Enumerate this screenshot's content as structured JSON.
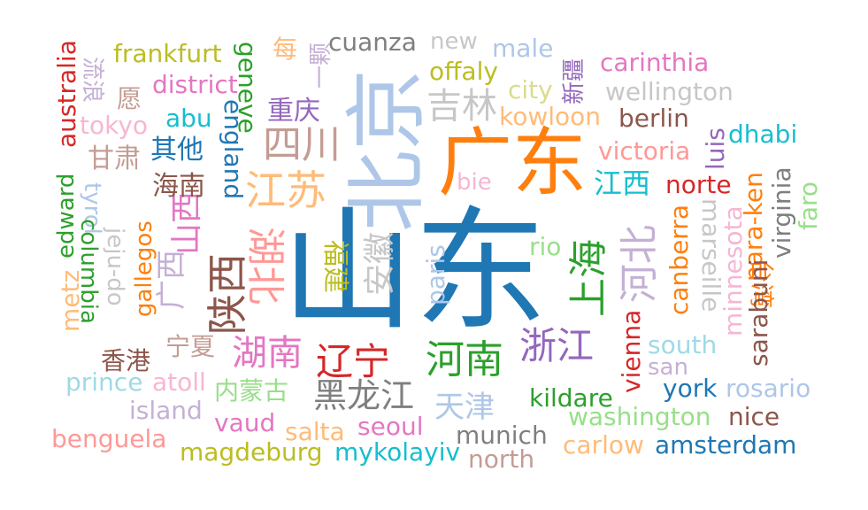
{
  "words": [
    {
      "text": "山东",
      "color": "#1f77b4"
    },
    {
      "text": "北京",
      "color": "#aec7e8"
    },
    {
      "text": "广东",
      "color": "#ff7f0e"
    },
    {
      "text": "四川",
      "color": "#c49c94"
    },
    {
      "text": "江苏",
      "color": "#ffbb78"
    },
    {
      "text": "吉林",
      "color": "#c7c7c7"
    },
    {
      "text": "上海",
      "color": "#2ca02c"
    },
    {
      "text": "河北",
      "color": "#c5b0d5"
    },
    {
      "text": "陕西",
      "color": "#8c564b"
    },
    {
      "text": "湖北",
      "color": "#ff9896"
    },
    {
      "text": "山西",
      "color": "#e377c2"
    },
    {
      "text": "广西",
      "color": "#c5b0d5"
    },
    {
      "text": "安徽",
      "color": "#c7c7c7"
    },
    {
      "text": "福建",
      "color": "#bcbd22"
    },
    {
      "text": "河南",
      "color": "#2ca02c"
    },
    {
      "text": "浙江",
      "color": "#9467bd"
    },
    {
      "text": "辽宁",
      "color": "#d62728"
    },
    {
      "text": "湖南",
      "color": "#e377c2"
    },
    {
      "text": "黑龙江",
      "color": "#7f7f7f"
    },
    {
      "text": "天津",
      "color": "#aec7e8"
    },
    {
      "text": "江西",
      "color": "#17becf"
    },
    {
      "text": "内蒙古",
      "color": "#98df8a"
    },
    {
      "text": "重庆",
      "color": "#9467bd"
    },
    {
      "text": "其他",
      "color": "#1f77b4"
    },
    {
      "text": "海南",
      "color": "#8c564b"
    },
    {
      "text": "甘肃",
      "color": "#c49c94"
    },
    {
      "text": "宁夏",
      "color": "#c49c94"
    },
    {
      "text": "香港",
      "color": "#8c564b"
    },
    {
      "text": "台湾",
      "color": "#ff7f0e"
    },
    {
      "text": "新疆",
      "color": "#9467bd"
    },
    {
      "text": "每",
      "color": "#ffbb78"
    },
    {
      "text": "一颗",
      "color": "#c5b0d5"
    },
    {
      "text": "愿",
      "color": "#c49c94"
    },
    {
      "text": "流浪",
      "color": "#c5b0d5"
    },
    {
      "text": "cuanza",
      "color": "#7f7f7f"
    },
    {
      "text": "new",
      "color": "#c7c7c7"
    },
    {
      "text": "male",
      "color": "#aec7e8"
    },
    {
      "text": "frankfurt",
      "color": "#bcbd22"
    },
    {
      "text": "district",
      "color": "#e377c2"
    },
    {
      "text": "offaly",
      "color": "#bcbd22"
    },
    {
      "text": "city",
      "color": "#dbdb8d"
    },
    {
      "text": "carinthia",
      "color": "#e377c2"
    },
    {
      "text": "wellington",
      "color": "#c7c7c7"
    },
    {
      "text": "kowloon",
      "color": "#ffbb78"
    },
    {
      "text": "berlin",
      "color": "#8c564b"
    },
    {
      "text": "dhabi",
      "color": "#17becf"
    },
    {
      "text": "victoria",
      "color": "#ff9896"
    },
    {
      "text": "norte",
      "color": "#d62728"
    },
    {
      "text": "bie",
      "color": "#f7b6d2"
    },
    {
      "text": "rio",
      "color": "#98df8a"
    },
    {
      "text": "paris",
      "color": "#aec7e8"
    },
    {
      "text": "tokyo",
      "color": "#f7b6d2"
    },
    {
      "text": "abu",
      "color": "#17becf"
    },
    {
      "text": "australia",
      "color": "#d62728"
    },
    {
      "text": "geneve",
      "color": "#2ca02c"
    },
    {
      "text": "england",
      "color": "#1f77b4"
    },
    {
      "text": "edward",
      "color": "#2ca02c"
    },
    {
      "text": "tyrol",
      "color": "#aec7e8"
    },
    {
      "text": "jeju-do",
      "color": "#c7c7c7"
    },
    {
      "text": "columbia",
      "color": "#2ca02c"
    },
    {
      "text": "metz",
      "color": "#ffbb78"
    },
    {
      "text": "gallegos",
      "color": "#ff7f0e"
    },
    {
      "text": "luis",
      "color": "#9467bd"
    },
    {
      "text": "canberra",
      "color": "#ff7f0e"
    },
    {
      "text": "marseille",
      "color": "#c7c7c7"
    },
    {
      "text": "minnesota",
      "color": "#f7b6d2"
    },
    {
      "text": "nara-ken",
      "color": "#ff7f0e"
    },
    {
      "text": "virginia",
      "color": "#7f7f7f"
    },
    {
      "text": "faro",
      "color": "#98df8a"
    },
    {
      "text": "sarabuni",
      "color": "#8c564b"
    },
    {
      "text": "vienna",
      "color": "#d62728"
    },
    {
      "text": "south",
      "color": "#9edae5"
    },
    {
      "text": "san",
      "color": "#c5b0d5"
    },
    {
      "text": "york",
      "color": "#1f77b4"
    },
    {
      "text": "rosario",
      "color": "#aec7e8"
    },
    {
      "text": "prince",
      "color": "#9edae5"
    },
    {
      "text": "atoll",
      "color": "#f7b6d2"
    },
    {
      "text": "island",
      "color": "#c5b0d5"
    },
    {
      "text": "kildare",
      "color": "#2ca02c"
    },
    {
      "text": "washington",
      "color": "#98df8a"
    },
    {
      "text": "nice",
      "color": "#8c564b"
    },
    {
      "text": "benguela",
      "color": "#ff9896"
    },
    {
      "text": "vaud",
      "color": "#e377c2"
    },
    {
      "text": "salta",
      "color": "#ffbb78"
    },
    {
      "text": "seoul",
      "color": "#e377c2"
    },
    {
      "text": "munich",
      "color": "#7f7f7f"
    },
    {
      "text": "carlow",
      "color": "#ffbb78"
    },
    {
      "text": "amsterdam",
      "color": "#1f77b4"
    },
    {
      "text": "magdeburg",
      "color": "#bcbd22"
    },
    {
      "text": "mykolayiv",
      "color": "#17becf"
    },
    {
      "text": "north",
      "color": "#c49c94"
    }
  ]
}
